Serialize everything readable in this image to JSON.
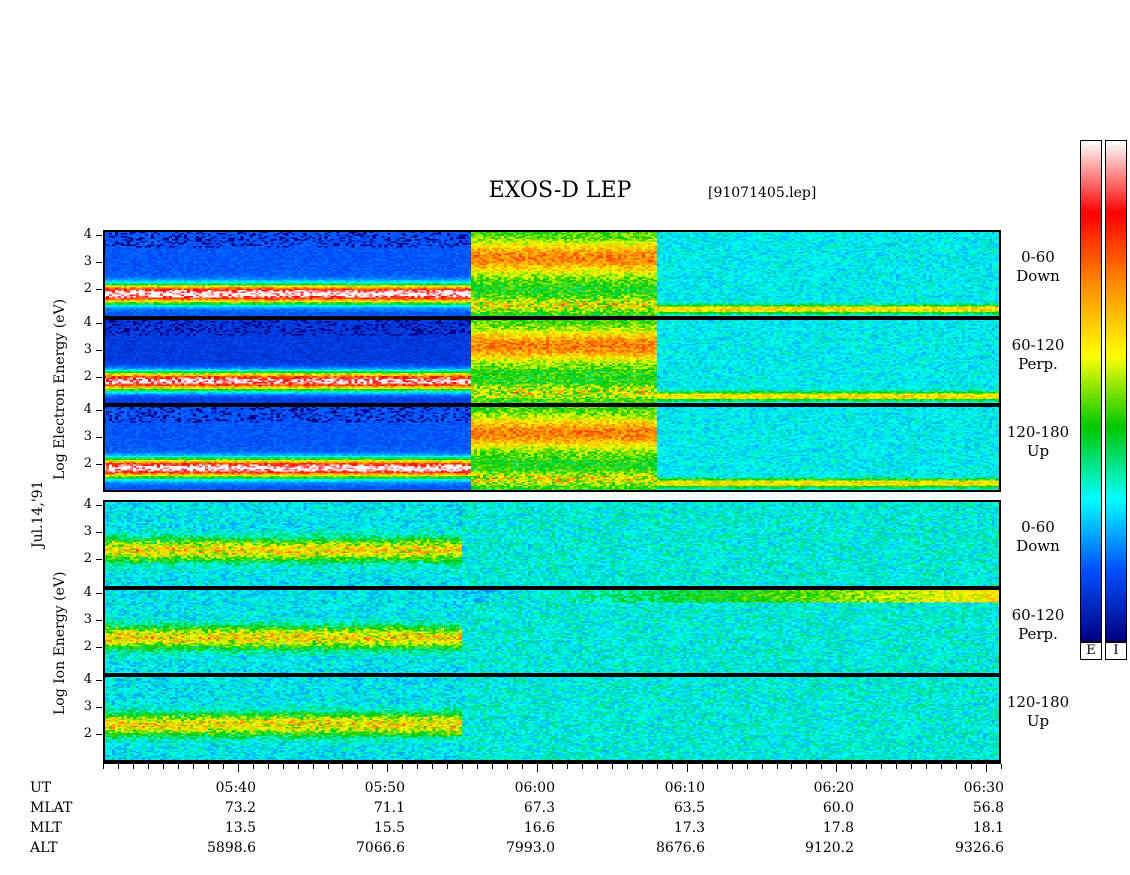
{
  "title": "EXOS-D LEP",
  "file_label": "[91071405.lep]",
  "date_label": "Jul.14,'91",
  "electron_axis_label": "Log  Electron  Energy (eV)",
  "ion_axis_label": "Log  Ion  Energy (eV)",
  "y_ticks": [
    "4",
    "3",
    "2"
  ],
  "panel_labels": [
    [
      "0-60",
      "Down"
    ],
    [
      "60-120",
      "Perp."
    ],
    [
      "120-180",
      "Up"
    ],
    [
      "0-60",
      "Down"
    ],
    [
      "60-120",
      "Perp."
    ],
    [
      "120-180",
      "Up"
    ]
  ],
  "colorbar_labels": [
    "E",
    "I"
  ],
  "time_axis": {
    "row_headers": [
      "UT",
      "MLAT",
      "MLT",
      "ALT"
    ],
    "columns": [
      {
        "ut": "05:40",
        "mlat": "73.2",
        "mlt": "13.5",
        "alt": "5898.6"
      },
      {
        "ut": "05:50",
        "mlat": "71.1",
        "mlt": "15.5",
        "alt": "7066.6"
      },
      {
        "ut": "06:00",
        "mlat": "67.3",
        "mlt": "16.6",
        "alt": "7993.0"
      },
      {
        "ut": "06:10",
        "mlat": "63.5",
        "mlt": "17.3",
        "alt": "8676.6"
      },
      {
        "ut": "06:20",
        "mlat": "60.0",
        "mlt": "17.8",
        "alt": "9120.2"
      },
      {
        "ut": "06:30",
        "mlat": "56.8",
        "mlt": "18.1",
        "alt": "9326.6"
      }
    ]
  },
  "chart_data": {
    "type": "heatmap",
    "title": "EXOS-D LEP",
    "x_label": "UT",
    "x_range_minutes_utc": [
      "05:31",
      "06:31"
    ],
    "y_label_electron": "Log Electron Energy (eV)",
    "y_label_ion": "Log Ion Energy (eV)",
    "y_range": [
      1,
      4
    ],
    "y_ticks": [
      2,
      3,
      4
    ],
    "colorscale": [
      "#ffffff",
      "#ff0000",
      "#ff8c00",
      "#ffff00",
      "#00c800",
      "#00ffff",
      "#0050ff",
      "#000080"
    ],
    "panels": [
      {
        "species": "Electron",
        "pitch_angle": "0-60",
        "direction": "Down"
      },
      {
        "species": "Electron",
        "pitch_angle": "60-120",
        "direction": "Perp."
      },
      {
        "species": "Electron",
        "pitch_angle": "120-180",
        "direction": "Up"
      },
      {
        "species": "Ion",
        "pitch_angle": "0-60",
        "direction": "Down"
      },
      {
        "species": "Ion",
        "pitch_angle": "60-120",
        "direction": "Perp."
      },
      {
        "species": "Ion",
        "pitch_angle": "120-180",
        "direction": "Up"
      }
    ]
  }
}
